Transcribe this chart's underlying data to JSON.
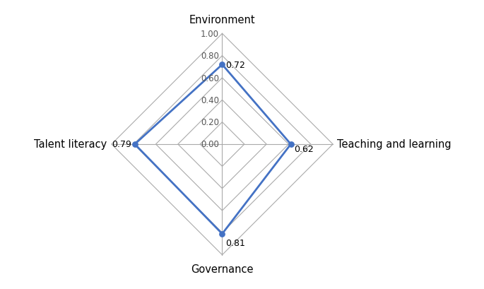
{
  "categories": [
    "Environment",
    "Teaching and learning",
    "Governance",
    "Talent literacy"
  ],
  "values": [
    0.72,
    0.62,
    0.81,
    0.79
  ],
  "grid_levels": [
    0.2,
    0.4,
    0.6,
    0.8,
    1.0
  ],
  "grid_labels": [
    "0.20",
    "0.40",
    "0.60",
    "0.80",
    "1.00"
  ],
  "center_label": "0.00",
  "data_color": "#4472C4",
  "grid_color": "#AAAAAA",
  "axis_color": "#AAAAAA",
  "background_color": "#FFFFFF",
  "value_labels": [
    "0.72",
    "0.62",
    "0.81",
    "0.79"
  ],
  "figsize": [
    6.85,
    4.1
  ],
  "dpi": 100
}
